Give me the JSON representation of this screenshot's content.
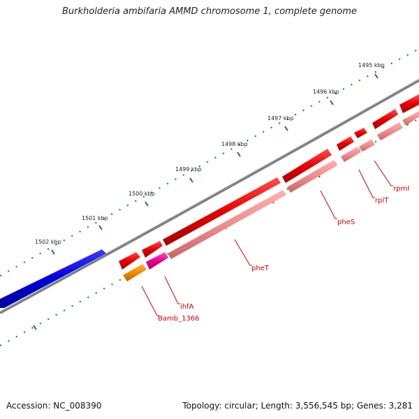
{
  "title": "Burkholderia ambifaria AMMD chromosome 1, complete genome",
  "kbp_labels": [
    "1502 kbp",
    "1501 kbp",
    "1500 kbp",
    "1499 kbp",
    "1498 kbp",
    "1497 kbp",
    "1496 kbp",
    "1495 kbp"
  ],
  "genes": [
    {
      "name": "Bamb_1366",
      "color": "#f08c00"
    },
    {
      "name": "ihfA",
      "color": "#e6008c"
    },
    {
      "name": "pheT",
      "color": "#e60000"
    },
    {
      "name": "pheS",
      "color": "#e60000"
    },
    {
      "name": "rplT",
      "color": "#e60000"
    },
    {
      "name": "rpmI",
      "color": "#e60000"
    }
  ],
  "colors": {
    "forward_gene": "#e60000",
    "forward_gene_other": "#0000dd",
    "reverse_gene_light": "#f08c8c",
    "backbone": "#808080",
    "tick": "#1a7a1a",
    "label": "#cc0000"
  },
  "footer": {
    "accession": "Accession: NC_008390",
    "stats": "Topology: circular; Length: 3,556,545 bp; Genes: 3,281"
  }
}
